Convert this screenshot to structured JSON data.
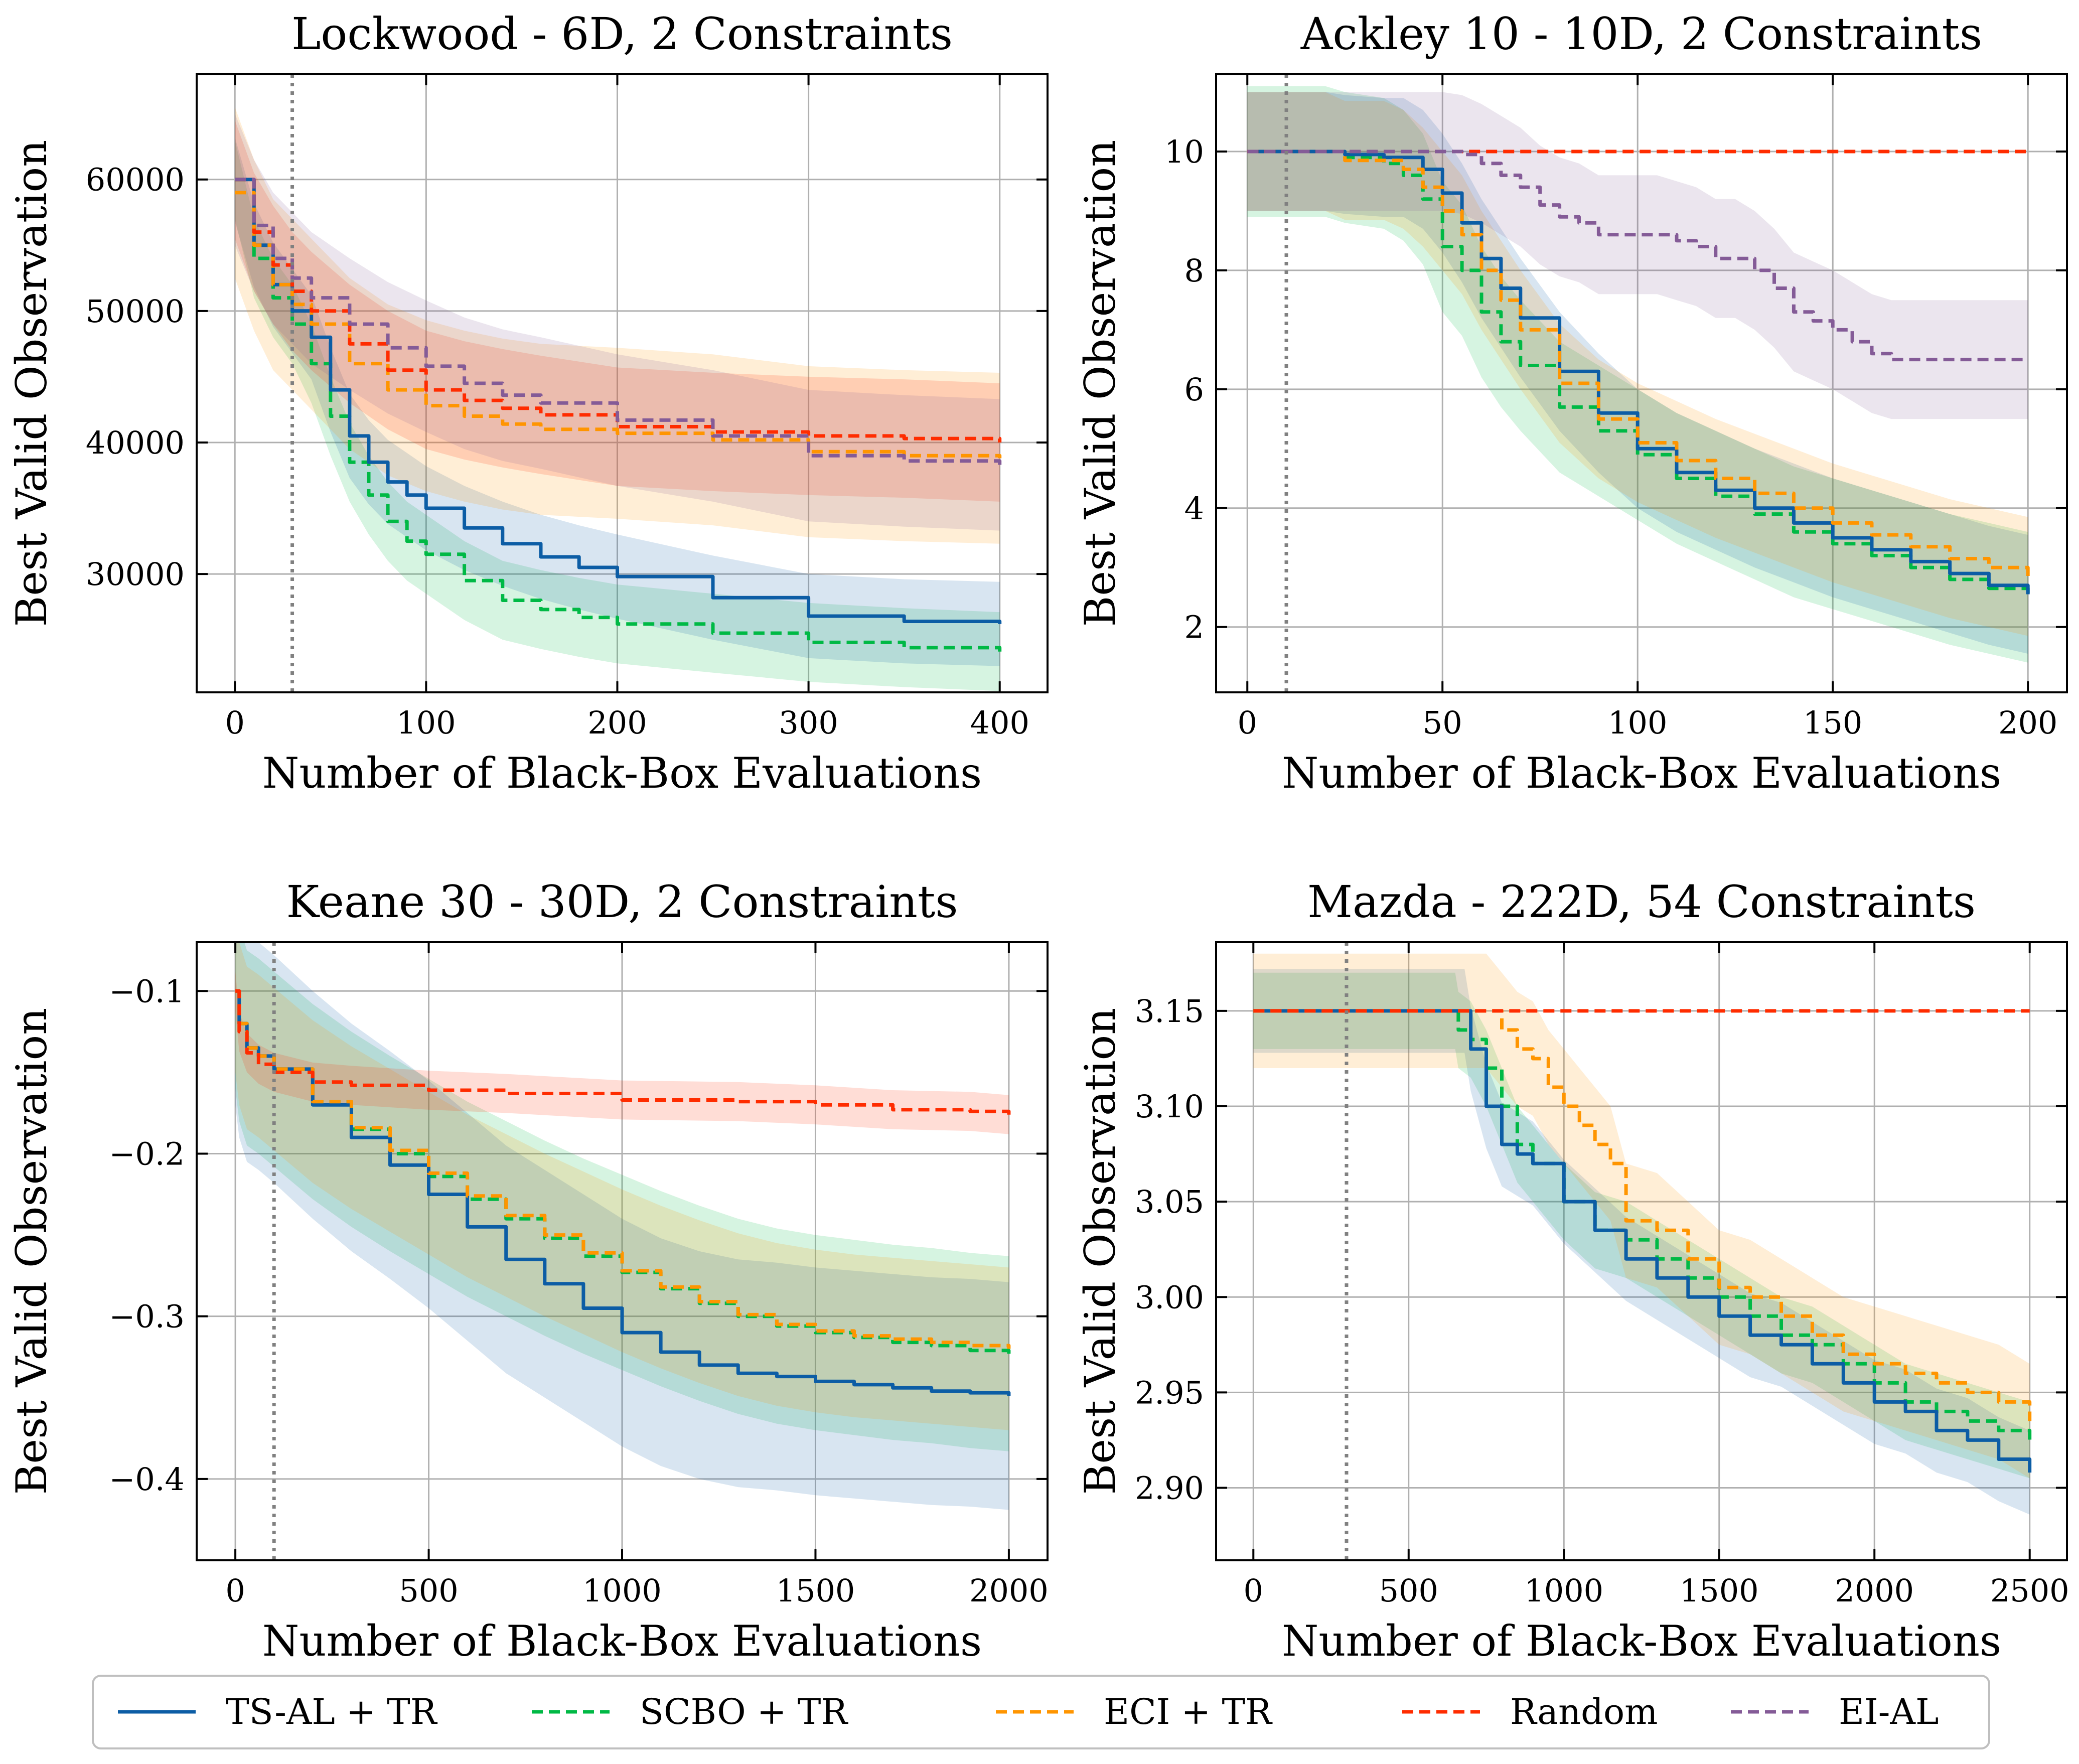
{
  "colors": {
    "ts_al": "#0c5da5",
    "scbo": "#00b945",
    "eci": "#ff9500",
    "random": "#ff2c00",
    "ei_al": "#845b97"
  },
  "legend": [
    {
      "key": "ts_al",
      "label": "TS-AL + TR",
      "dash": false
    },
    {
      "key": "scbo",
      "label": "SCBO + TR",
      "dash": true
    },
    {
      "key": "eci",
      "label": "ECI + TR",
      "dash": true
    },
    {
      "key": "random",
      "label": "Random",
      "dash": true
    },
    {
      "key": "ei_al",
      "label": "EI-AL",
      "dash": true
    }
  ],
  "chart_data": [
    {
      "type": "line",
      "title": "Lockwood - 6D, 2 Constraints",
      "xlabel": "Number of Black-Box Evaluations",
      "ylabel": "Best Valid Observation",
      "xlim": [
        -20,
        425
      ],
      "ylim": [
        21000,
        68000
      ],
      "xticks": [
        0,
        100,
        200,
        300,
        400
      ],
      "xtick_labels": [
        "0",
        "100",
        "200",
        "300",
        "400"
      ],
      "yticks": [
        30000,
        40000,
        50000,
        60000
      ],
      "ytick_labels": [
        "30000",
        "40000",
        "50000",
        "60000"
      ],
      "init_line_x": 30,
      "series": [
        {
          "key": "scbo",
          "x": [
            0,
            10,
            20,
            30,
            40,
            50,
            60,
            70,
            80,
            90,
            100,
            120,
            140,
            160,
            180,
            200,
            250,
            300,
            350,
            400
          ],
          "y": [
            60000,
            54000,
            51000,
            49000,
            46000,
            42000,
            38500,
            36000,
            34000,
            32500,
            31500,
            29500,
            28000,
            27300,
            26700,
            26200,
            25500,
            24800,
            24400,
            24100
          ],
          "band": 3000
        },
        {
          "key": "ts_al",
          "x": [
            0,
            10,
            20,
            30,
            40,
            50,
            60,
            70,
            80,
            90,
            100,
            120,
            140,
            160,
            180,
            200,
            250,
            300,
            350,
            400
          ],
          "y": [
            60000,
            55000,
            52000,
            50000,
            48000,
            44000,
            40500,
            38500,
            37000,
            36000,
            35000,
            33500,
            32300,
            31300,
            30500,
            29800,
            28200,
            26800,
            26400,
            26200
          ],
          "band": 3200
        },
        {
          "key": "eci",
          "x": [
            0,
            10,
            20,
            30,
            40,
            60,
            80,
            100,
            120,
            140,
            160,
            200,
            250,
            300,
            350,
            400
          ],
          "y": [
            59000,
            55000,
            52000,
            50500,
            49000,
            46000,
            44000,
            42800,
            42000,
            41400,
            41000,
            40700,
            40200,
            39300,
            39000,
            38800
          ],
          "band": 6500
        },
        {
          "key": "random",
          "x": [
            0,
            10,
            20,
            30,
            40,
            60,
            80,
            100,
            120,
            140,
            160,
            200,
            250,
            300,
            350,
            400
          ],
          "y": [
            60000,
            56000,
            53500,
            51500,
            50000,
            47500,
            45500,
            44000,
            43200,
            42600,
            42100,
            41200,
            40800,
            40500,
            40300,
            40000
          ],
          "band": 4500
        },
        {
          "key": "ei_al",
          "x": [
            0,
            10,
            20,
            30,
            40,
            60,
            80,
            100,
            120,
            140,
            160,
            200,
            250,
            300,
            350,
            400
          ],
          "y": [
            60000,
            56500,
            54000,
            52500,
            51000,
            49000,
            47200,
            45800,
            44500,
            43600,
            43000,
            41700,
            40500,
            39000,
            38600,
            38300
          ],
          "band": 5000
        }
      ]
    },
    {
      "type": "line",
      "title": "Ackley 10 - 10D, 2 Constraints",
      "xlabel": "Number of Black-Box Evaluations",
      "ylabel": "Best Valid Observation",
      "xlim": [
        -8,
        210
      ],
      "ylim": [
        0.9,
        11.3
      ],
      "xticks": [
        0,
        50,
        100,
        150,
        200
      ],
      "xtick_labels": [
        "0",
        "50",
        "100",
        "150",
        "200"
      ],
      "yticks": [
        2,
        4,
        6,
        8,
        10
      ],
      "ytick_labels": [
        "2",
        "4",
        "6",
        "8",
        "10"
      ],
      "init_line_x": 10,
      "series": [
        {
          "key": "scbo",
          "x": [
            0,
            20,
            25,
            35,
            40,
            45,
            50,
            55,
            60,
            65,
            70,
            80,
            90,
            100,
            110,
            120,
            130,
            140,
            150,
            160,
            170,
            180,
            190,
            200
          ],
          "y": [
            10,
            10,
            9.9,
            9.8,
            9.6,
            9.2,
            8.4,
            8.0,
            7.3,
            6.8,
            6.4,
            5.7,
            5.3,
            4.9,
            4.5,
            4.2,
            3.9,
            3.6,
            3.4,
            3.2,
            3.0,
            2.8,
            2.65,
            2.5
          ],
          "band": 1.1
        },
        {
          "key": "ts_al",
          "x": [
            0,
            20,
            25,
            35,
            40,
            45,
            50,
            55,
            60,
            65,
            70,
            80,
            90,
            100,
            110,
            120,
            130,
            140,
            150,
            160,
            170,
            180,
            190,
            200
          ],
          "y": [
            10,
            10,
            9.95,
            9.9,
            9.9,
            9.7,
            9.3,
            8.8,
            8.2,
            7.7,
            7.2,
            6.3,
            5.6,
            5.0,
            4.6,
            4.3,
            4.0,
            3.75,
            3.5,
            3.3,
            3.1,
            2.9,
            2.7,
            2.55
          ],
          "band": 1.0
        },
        {
          "key": "eci",
          "x": [
            0,
            20,
            25,
            35,
            40,
            45,
            50,
            55,
            60,
            65,
            70,
            80,
            90,
            100,
            110,
            120,
            130,
            140,
            150,
            160,
            170,
            180,
            190,
            200
          ],
          "y": [
            10,
            10,
            9.85,
            9.85,
            9.7,
            9.4,
            9.0,
            8.6,
            8.0,
            7.5,
            7.0,
            6.1,
            5.5,
            5.1,
            4.8,
            4.5,
            4.25,
            4.0,
            3.75,
            3.55,
            3.35,
            3.15,
            3.0,
            2.85
          ],
          "band": 1.0
        },
        {
          "key": "random",
          "x": [
            0,
            200
          ],
          "y": [
            10,
            10
          ],
          "band": 0
        },
        {
          "key": "ei_al",
          "x": [
            0,
            50,
            55,
            60,
            65,
            70,
            75,
            80,
            85,
            90,
            95,
            100,
            105,
            110,
            115,
            120,
            125,
            130,
            135,
            140,
            145,
            150,
            155,
            160,
            165,
            170,
            180,
            190,
            200
          ],
          "y": [
            10,
            10,
            9.95,
            9.8,
            9.6,
            9.4,
            9.1,
            8.9,
            8.8,
            8.6,
            8.6,
            8.6,
            8.6,
            8.5,
            8.4,
            8.2,
            8.2,
            8.0,
            7.7,
            7.3,
            7.15,
            7.0,
            6.8,
            6.6,
            6.5,
            6.5,
            6.5,
            6.5,
            6.5
          ],
          "band": 1.0
        }
      ]
    },
    {
      "type": "line",
      "title": "Keane 30 - 30D, 2 Constraints",
      "xlabel": "Number of Black-Box Evaluations",
      "ylabel": "Best Valid Observation",
      "xlim": [
        -100,
        2100
      ],
      "ylim": [
        -0.45,
        -0.07
      ],
      "xticks": [
        0,
        500,
        1000,
        1500,
        2000
      ],
      "xtick_labels": [
        "0",
        "500",
        "1000",
        "1500",
        "2000"
      ],
      "yticks": [
        -0.1,
        -0.2,
        -0.3,
        -0.4
      ],
      "ytick_labels": [
        "−0.1",
        "−0.2",
        "−0.3",
        "−0.4"
      ],
      "init_line_x": 100,
      "series": [
        {
          "key": "scbo",
          "x": [
            0,
            10,
            30,
            60,
            100,
            200,
            300,
            400,
            500,
            600,
            700,
            800,
            900,
            1000,
            1100,
            1200,
            1300,
            1400,
            1500,
            1600,
            1700,
            1800,
            1900,
            2000
          ],
          "y": [
            -0.1,
            -0.12,
            -0.135,
            -0.14,
            -0.148,
            -0.168,
            -0.185,
            -0.2,
            -0.214,
            -0.228,
            -0.24,
            -0.252,
            -0.263,
            -0.273,
            -0.283,
            -0.292,
            -0.3,
            -0.306,
            -0.31,
            -0.313,
            -0.316,
            -0.318,
            -0.321,
            -0.323
          ],
          "band": 0.06
        },
        {
          "key": "ts_al",
          "x": [
            0,
            10,
            30,
            60,
            100,
            200,
            300,
            400,
            500,
            600,
            700,
            800,
            900,
            1000,
            1100,
            1200,
            1300,
            1400,
            1500,
            1600,
            1700,
            1800,
            1900,
            2000
          ],
          "y": [
            -0.1,
            -0.12,
            -0.135,
            -0.14,
            -0.148,
            -0.17,
            -0.19,
            -0.207,
            -0.225,
            -0.245,
            -0.265,
            -0.28,
            -0.295,
            -0.31,
            -0.322,
            -0.33,
            -0.335,
            -0.337,
            -0.34,
            -0.342,
            -0.344,
            -0.346,
            -0.347,
            -0.349
          ],
          "band": 0.07
        },
        {
          "key": "eci",
          "x": [
            0,
            10,
            30,
            60,
            100,
            200,
            300,
            400,
            500,
            600,
            700,
            800,
            900,
            1000,
            1100,
            1200,
            1300,
            1400,
            1500,
            1600,
            1700,
            1800,
            1900,
            2000
          ],
          "y": [
            -0.1,
            -0.12,
            -0.135,
            -0.14,
            -0.148,
            -0.168,
            -0.184,
            -0.198,
            -0.212,
            -0.226,
            -0.238,
            -0.25,
            -0.261,
            -0.272,
            -0.282,
            -0.291,
            -0.299,
            -0.305,
            -0.309,
            -0.312,
            -0.314,
            -0.316,
            -0.318,
            -0.32
          ],
          "band": 0.05
        },
        {
          "key": "random",
          "x": [
            0,
            10,
            30,
            60,
            100,
            200,
            300,
            500,
            700,
            1000,
            1300,
            1500,
            1700,
            1900,
            2000
          ],
          "y": [
            -0.1,
            -0.125,
            -0.138,
            -0.145,
            -0.15,
            -0.156,
            -0.158,
            -0.161,
            -0.163,
            -0.167,
            -0.168,
            -0.17,
            -0.173,
            -0.174,
            -0.176
          ],
          "band": 0.012
        }
      ]
    },
    {
      "type": "line",
      "title": "Mazda - 222D, 54 Constraints",
      "xlabel": "Number of Black-Box Evaluations",
      "ylabel": "Best Valid Observation",
      "xlim": [
        -120,
        2620
      ],
      "ylim": [
        2.862,
        3.186
      ],
      "xticks": [
        0,
        500,
        1000,
        1500,
        2000,
        2500
      ],
      "xtick_labels": [
        "0",
        "500",
        "1000",
        "1500",
        "2000",
        "2500"
      ],
      "yticks": [
        2.9,
        2.95,
        3.0,
        3.05,
        3.1,
        3.15
      ],
      "ytick_labels": [
        "2.90",
        "2.95",
        "3.00",
        "3.05",
        "3.10",
        "3.15"
      ],
      "init_line_x": 300,
      "series": [
        {
          "key": "scbo",
          "x": [
            0,
            650,
            660,
            700,
            750,
            800,
            850,
            900,
            1000,
            1100,
            1200,
            1300,
            1400,
            1500,
            1600,
            1700,
            1800,
            1900,
            2000,
            2100,
            2200,
            2300,
            2400,
            2500
          ],
          "y": [
            3.15,
            3.15,
            3.14,
            3.135,
            3.12,
            3.1,
            3.08,
            3.07,
            3.05,
            3.035,
            3.03,
            3.02,
            3.01,
            3.0,
            2.99,
            2.98,
            2.975,
            2.965,
            2.955,
            2.945,
            2.94,
            2.935,
            2.93,
            2.925
          ],
          "band": 0.02
        },
        {
          "key": "ts_al",
          "x": [
            0,
            680,
            700,
            750,
            800,
            850,
            900,
            1000,
            1100,
            1200,
            1300,
            1400,
            1500,
            1600,
            1700,
            1800,
            1900,
            2000,
            2100,
            2200,
            2300,
            2400,
            2500
          ],
          "y": [
            3.15,
            3.15,
            3.13,
            3.1,
            3.08,
            3.075,
            3.07,
            3.05,
            3.035,
            3.02,
            3.01,
            3.0,
            2.99,
            2.98,
            2.975,
            2.965,
            2.955,
            2.945,
            2.94,
            2.93,
            2.925,
            2.915,
            2.908
          ],
          "band": 0.022
        },
        {
          "key": "eci",
          "x": [
            0,
            750,
            800,
            850,
            900,
            950,
            1000,
            1050,
            1100,
            1150,
            1200,
            1300,
            1400,
            1500,
            1600,
            1700,
            1800,
            1900,
            2000,
            2100,
            2200,
            2300,
            2400,
            2500
          ],
          "y": [
            3.15,
            3.15,
            3.14,
            3.13,
            3.125,
            3.11,
            3.1,
            3.09,
            3.08,
            3.07,
            3.04,
            3.035,
            3.02,
            3.005,
            3.0,
            2.99,
            2.98,
            2.97,
            2.965,
            2.96,
            2.955,
            2.95,
            2.945,
            2.935
          ],
          "band": 0.03
        },
        {
          "key": "random",
          "x": [
            0,
            2500
          ],
          "y": [
            3.15,
            3.15
          ],
          "band": 0
        }
      ]
    }
  ]
}
